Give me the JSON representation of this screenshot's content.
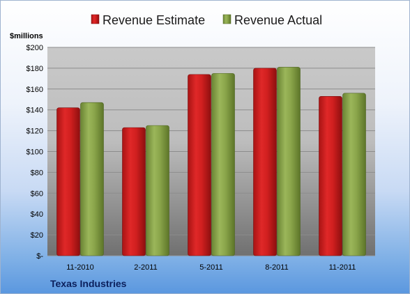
{
  "company": "Texas Industries",
  "colors": {
    "estimate": "#cc1f1f",
    "actual": "#86a04a",
    "plot_top": "#c8c8c8",
    "plot_bottom": "#6f6f6f"
  },
  "chart_data": {
    "type": "bar",
    "title": "",
    "ylabel": "$millions",
    "xlabel": "",
    "categories": [
      "11-2010",
      "2-2011",
      "5-2011",
      "8-2011",
      "11-2011"
    ],
    "series": [
      {
        "name": "Revenue Estimate",
        "values": [
          142,
          123,
          174,
          180,
          153
        ]
      },
      {
        "name": "Revenue Actual",
        "values": [
          147,
          125,
          175,
          181,
          156
        ]
      }
    ],
    "ylim": [
      0,
      200
    ],
    "yticks": [
      0,
      20,
      40,
      60,
      80,
      100,
      120,
      140,
      160,
      180,
      200
    ],
    "ytick_labels": [
      "$-",
      "$20",
      "$40",
      "$60",
      "$80",
      "$100",
      "$120",
      "$140",
      "$160",
      "$180",
      "$200"
    ],
    "grid": true,
    "legend": "top"
  }
}
